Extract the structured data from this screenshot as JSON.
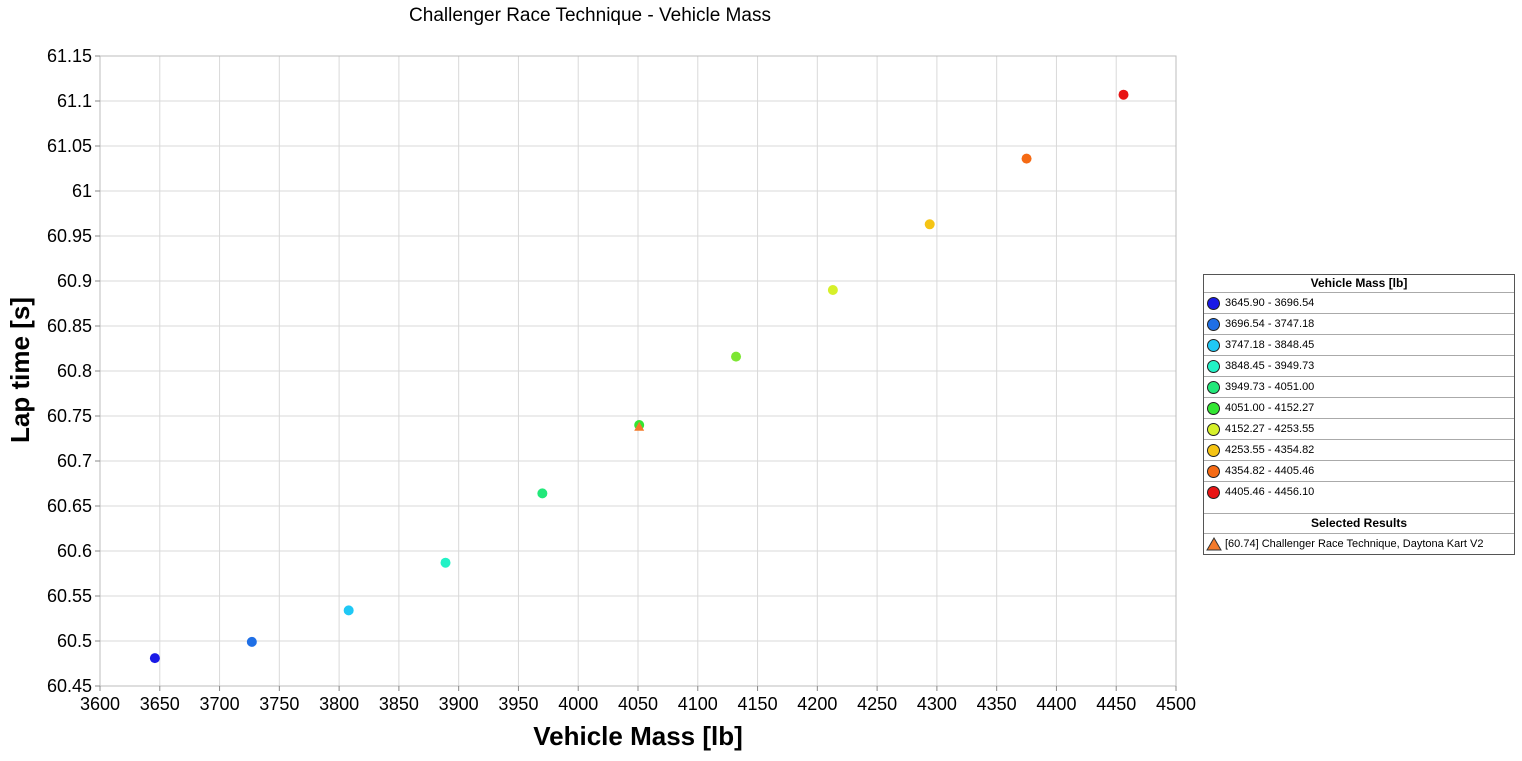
{
  "chart_data": {
    "type": "scatter",
    "title": "Challenger Race Technique - Vehicle Mass",
    "xlabel": "Vehicle Mass [lb]",
    "ylabel": "Lap time [s]",
    "xlim": [
      3600,
      4500
    ],
    "ylim": [
      60.45,
      61.15
    ],
    "x_ticks": [
      "3600",
      "3650",
      "3700",
      "3750",
      "3800",
      "3850",
      "3900",
      "3950",
      "4000",
      "4050",
      "4100",
      "4150",
      "4200",
      "4250",
      "4300",
      "4350",
      "4400",
      "4450",
      "4500"
    ],
    "y_ticks": [
      "60.45",
      "60.5",
      "60.55",
      "60.6",
      "60.65",
      "60.7",
      "60.75",
      "60.8",
      "60.85",
      "60.9",
      "60.95",
      "61",
      "61.05",
      "61.1",
      "61.15"
    ],
    "grid": true,
    "legend_position": "right",
    "points": [
      {
        "x": 3645.9,
        "y": 60.481,
        "color": "#1a1ae6"
      },
      {
        "x": 3727.0,
        "y": 60.499,
        "color": "#1f6fe6"
      },
      {
        "x": 3808.0,
        "y": 60.534,
        "color": "#1fc8f5"
      },
      {
        "x": 3889.0,
        "y": 60.587,
        "color": "#22f2c6"
      },
      {
        "x": 3970.0,
        "y": 60.664,
        "color": "#22e87a"
      },
      {
        "x": 4051.0,
        "y": 60.74,
        "color": "#33e633"
      },
      {
        "x": 4132.0,
        "y": 60.816,
        "color": "#7de633"
      },
      {
        "x": 4213.0,
        "y": 60.89,
        "color": "#d6f02a"
      },
      {
        "x": 4294.0,
        "y": 60.963,
        "color": "#f5c414"
      },
      {
        "x": 4375.0,
        "y": 61.036,
        "color": "#f56a14"
      },
      {
        "x": 4456.1,
        "y": 61.107,
        "color": "#e81414"
      }
    ],
    "selected": [
      {
        "x": 4051.0,
        "y": 60.738,
        "color": "#f47a2a",
        "marker": "triangle"
      }
    ],
    "legend": {
      "title": "Vehicle Mass [lb]",
      "items": [
        {
          "label": "3645.90 - 3696.54",
          "color": "#1a1ae6"
        },
        {
          "label": "3696.54 - 3747.18",
          "color": "#1f6fe6"
        },
        {
          "label": "3747.18 - 3848.45",
          "color": "#1fc8f5"
        },
        {
          "label": "3848.45 - 3949.73",
          "color": "#22f2c6"
        },
        {
          "label": "3949.73 - 4051.00",
          "color": "#22e87a"
        },
        {
          "label": "4051.00 - 4152.27",
          "color": "#33e633"
        },
        {
          "label": "4152.27 - 4253.55",
          "color": "#d6f02a"
        },
        {
          "label": "4253.55 - 4354.82",
          "color": "#f5c414"
        },
        {
          "label": "4354.82 - 4405.46",
          "color": "#f56a14"
        },
        {
          "label": "4405.46 - 4456.10",
          "color": "#e81414"
        }
      ],
      "selected_title": "Selected Results",
      "selected_items": [
        {
          "label": "[60.74] Challenger Race Technique, Daytona Kart V2",
          "color": "#f47a2a"
        }
      ]
    }
  }
}
